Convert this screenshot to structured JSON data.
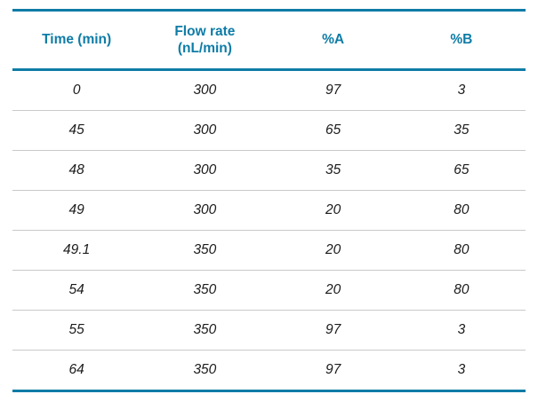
{
  "colors": {
    "accent": "#0e7ca6",
    "row_separator": "#c9c9c9",
    "text": "#1c1c1c",
    "background": "#ffffff"
  },
  "table": {
    "headers": [
      "Time (min)",
      "Flow rate\n(nL/min)",
      "%A",
      "%B"
    ],
    "rows": [
      [
        "0",
        "300",
        "97",
        "3"
      ],
      [
        "45",
        "300",
        "65",
        "35"
      ],
      [
        "48",
        "300",
        "35",
        "65"
      ],
      [
        "49",
        "300",
        "20",
        "80"
      ],
      [
        "49.1",
        "350",
        "20",
        "80"
      ],
      [
        "54",
        "350",
        "20",
        "80"
      ],
      [
        "55",
        "350",
        "97",
        "3"
      ],
      [
        "64",
        "350",
        "97",
        "3"
      ]
    ]
  },
  "chart_data": {
    "type": "table",
    "columns": [
      "Time (min)",
      "Flow rate (nL/min)",
      "%A",
      "%B"
    ],
    "rows": [
      [
        0,
        300,
        97,
        3
      ],
      [
        45,
        300,
        65,
        35
      ],
      [
        48,
        300,
        35,
        65
      ],
      [
        49,
        300,
        20,
        80
      ],
      [
        49.1,
        350,
        20,
        80
      ],
      [
        54,
        350,
        20,
        80
      ],
      [
        55,
        350,
        97,
        3
      ],
      [
        64,
        350,
        97,
        3
      ]
    ]
  }
}
